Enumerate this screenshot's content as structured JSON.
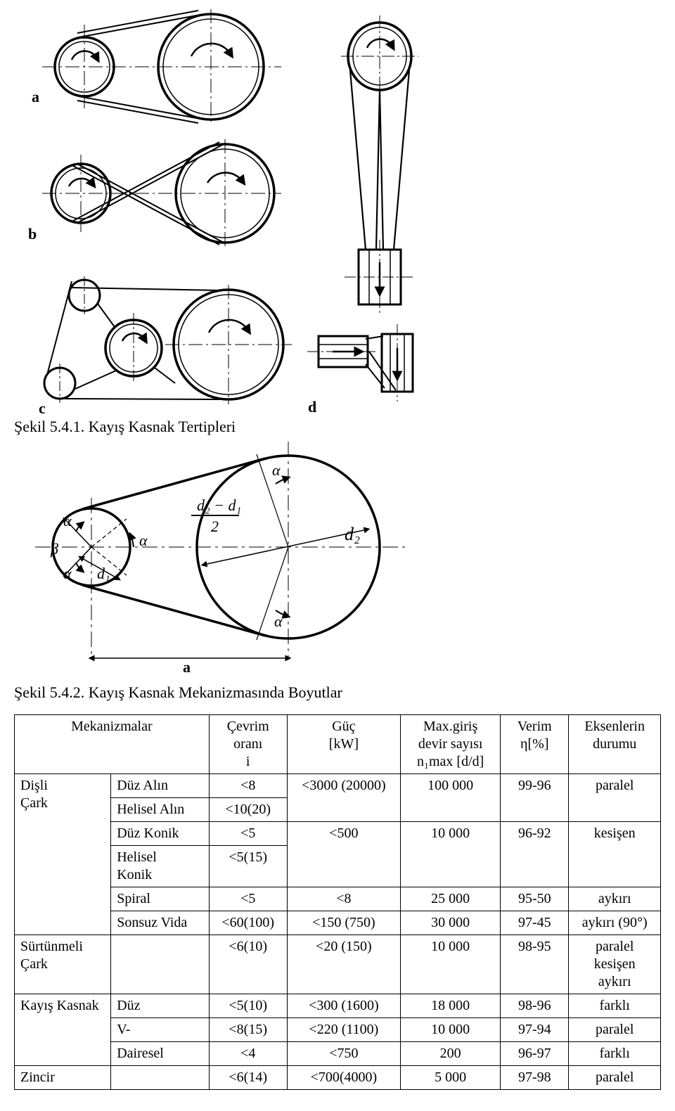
{
  "figure1": {
    "caption": "Şekil 5.4.1. Kayış Kasnak Tertipleri",
    "labels": {
      "a": "a",
      "b": "b",
      "c": "c",
      "d": "d"
    },
    "stroke": "#000000",
    "stroke_main": 3.5,
    "stroke_belt": 2.0,
    "stroke_center": 1.0
  },
  "figure2": {
    "caption": "Şekil 5.4.2. Kayış Kasnak Mekanizmasında Boyutlar",
    "symbols": {
      "alpha": "α",
      "beta": "β",
      "d1": "d₁",
      "d2": "d₂",
      "a": "a",
      "frac_top": "d₂ − d₁",
      "frac_bot": "2"
    },
    "stroke": "#000000",
    "stroke_main": 3.5,
    "stroke_thin": 1.2
  },
  "table": {
    "headers": {
      "mech": "Mekanizmalar",
      "ratio": "Çevrim\noranı\ni",
      "power": "Güç\n[kW]",
      "rpm": "Max.giriş\ndevir sayısı\nn₁max [d/d]",
      "eff": "Verim\nη[%]",
      "axes": "Eksenlerin\ndurumu"
    },
    "groups": {
      "gear": "Dişli\nÇark",
      "friction": "Sürtünmeli\nÇark",
      "belt": "Kayış Kasnak",
      "chain": "Zincir"
    },
    "rows": {
      "g1": {
        "type": "Düz Alın",
        "ratio": "<8",
        "power": "<3000 (20000)",
        "rpm": "100 000",
        "eff": "99-96",
        "axes": "paralel"
      },
      "g2": {
        "type": "Helisel Alın",
        "ratio": "<10(20)"
      },
      "g3": {
        "type": "Düz Konik",
        "ratio": "<5",
        "power": "<500",
        "rpm": "10 000",
        "eff": "96-92",
        "axes": "kesişen"
      },
      "g4": {
        "type": "Helisel\nKonik",
        "ratio": "<5(15)"
      },
      "g5": {
        "type": "Spiral",
        "ratio": "<5",
        "power": "<8",
        "rpm": "25 000",
        "eff": "95-50",
        "axes": "aykırı"
      },
      "g6": {
        "type": "Sonsuz Vida",
        "ratio": "<60(100)",
        "power": "<150 (750)",
        "rpm": "30 000",
        "eff": "97-45",
        "axes": "aykırı (90°)"
      },
      "fr": {
        "type": "",
        "ratio": "<6(10)",
        "power": "<20 (150)",
        "rpm": "10 000",
        "eff": "98-95",
        "axes": "paralel\nkesişen\naykırı"
      },
      "b1": {
        "type": "Düz",
        "ratio": "<5(10)",
        "power": "<300 (1600)",
        "rpm": "18 000",
        "eff": "98-96",
        "axes": "farklı"
      },
      "b2": {
        "type": "V-",
        "ratio": "<8(15)",
        "power": "<220 (1100)",
        "rpm": "10 000",
        "eff": "97-94",
        "axes": "paralel"
      },
      "b3": {
        "type": "Dairesel",
        "ratio": "<4",
        "power": "<750",
        "rpm": "200",
        "eff": "96-97",
        "axes": "farklı"
      },
      "ch": {
        "type": "",
        "ratio": "<6(14)",
        "power": "<700(4000)",
        "rpm": "5 000",
        "eff": "97-98",
        "axes": "paralel"
      }
    }
  }
}
